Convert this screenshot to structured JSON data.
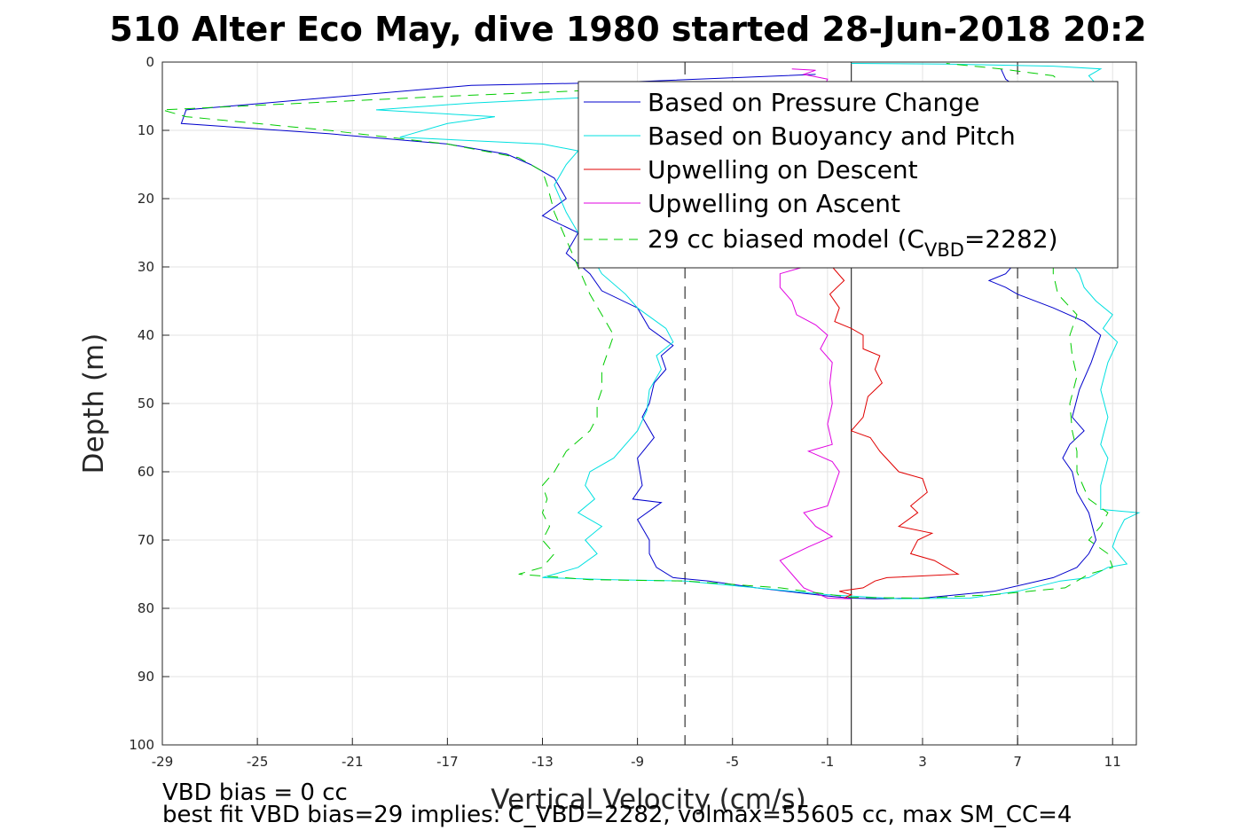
{
  "chart_data": {
    "type": "line",
    "title": "510 Alter Eco May, dive 1980 started 28-Jun-2018 20:2",
    "xlabel": "Vertical Velocity (cm/s)",
    "ylabel": "Depth (m)",
    "xlim": [
      -29,
      12
    ],
    "ylim": [
      0,
      100
    ],
    "y_reversed": true,
    "grid": true,
    "x_ticks": [
      -29,
      -25,
      -21,
      -17,
      -13,
      -9,
      -5,
      -1,
      3,
      7,
      11
    ],
    "y_ticks": [
      0,
      10,
      20,
      30,
      40,
      50,
      60,
      70,
      80,
      90,
      100
    ],
    "legend_position": "top-right",
    "reference_lines": [
      {
        "x": -7,
        "style": "dashed"
      },
      {
        "x": 0,
        "style": "solid"
      },
      {
        "x": 7,
        "style": "dashed"
      }
    ],
    "series": [
      {
        "name": "Based on Pressure Change",
        "color": "#0000cc",
        "style": "solid",
        "points": [
          [
            -1.5,
            1.8
          ],
          [
            -10,
            3
          ],
          [
            -16,
            3.4
          ],
          [
            -28,
            7
          ],
          [
            -28.2,
            9
          ],
          [
            -22,
            10.5
          ],
          [
            -17,
            12
          ],
          [
            -14.5,
            13.5
          ],
          [
            -13.5,
            15
          ],
          [
            -12.5,
            17
          ],
          [
            -12,
            20
          ],
          [
            -13,
            22.5
          ],
          [
            -11.5,
            25
          ],
          [
            -12,
            28
          ],
          [
            -11,
            31
          ],
          [
            -10.5,
            33.5
          ],
          [
            -9,
            36
          ],
          [
            -8.5,
            39
          ],
          [
            -7.5,
            41.5
          ],
          [
            -8,
            43
          ],
          [
            -7.8,
            45
          ],
          [
            -8.3,
            47
          ],
          [
            -8.5,
            50
          ],
          [
            -8.8,
            52
          ],
          [
            -8.3,
            55
          ],
          [
            -9,
            58
          ],
          [
            -8.8,
            62
          ],
          [
            -9.2,
            64
          ],
          [
            -8,
            64.5
          ],
          [
            -9,
            67
          ],
          [
            -8.5,
            70
          ],
          [
            -8.5,
            72
          ],
          [
            -8.2,
            74
          ],
          [
            -7.5,
            75.5
          ],
          [
            -6,
            76
          ],
          [
            -4,
            77
          ],
          [
            -1,
            78.2
          ],
          [
            0,
            78.5
          ],
          [
            1,
            78.6
          ],
          [
            3,
            78.5
          ],
          [
            6,
            77.5
          ],
          [
            8.5,
            75.5
          ],
          [
            9.5,
            74
          ],
          [
            10,
            72
          ],
          [
            10.3,
            70
          ],
          [
            10,
            66
          ],
          [
            9.5,
            63
          ],
          [
            9.3,
            60
          ],
          [
            8.9,
            58
          ],
          [
            9.2,
            56
          ],
          [
            9.8,
            54
          ],
          [
            9.3,
            52
          ],
          [
            9.6,
            48
          ],
          [
            10.1,
            44
          ],
          [
            10.5,
            40
          ],
          [
            9.8,
            38
          ],
          [
            8.5,
            36
          ],
          [
            7,
            34
          ],
          [
            6.5,
            33
          ],
          [
            5.8,
            32
          ],
          [
            6.5,
            31
          ],
          [
            7,
            29
          ],
          [
            7.5,
            26
          ],
          [
            8,
            23
          ],
          [
            8.5,
            20
          ],
          [
            8.8,
            17
          ],
          [
            9,
            14
          ],
          [
            8.5,
            11
          ],
          [
            8,
            8
          ],
          [
            7.5,
            5
          ],
          [
            6.5,
            2.5
          ],
          [
            6.3,
            1
          ]
        ]
      },
      {
        "name": "Based on Buoyancy and Pitch",
        "color": "#00e0e0",
        "style": "solid",
        "points": [
          [
            -3,
            4
          ],
          [
            -10,
            5
          ],
          [
            -16,
            6
          ],
          [
            -20,
            7
          ],
          [
            -15,
            8
          ],
          [
            -17,
            9
          ],
          [
            -19,
            11
          ],
          [
            -16,
            11.5
          ],
          [
            -13,
            12
          ],
          [
            -11.5,
            13
          ],
          [
            -12,
            15
          ],
          [
            -12.5,
            18
          ],
          [
            -12,
            22
          ],
          [
            -11.5,
            25
          ],
          [
            -11,
            28
          ],
          [
            -10.5,
            31
          ],
          [
            -9.5,
            34
          ],
          [
            -9,
            36
          ],
          [
            -7.8,
            39
          ],
          [
            -7.5,
            41
          ],
          [
            -8.2,
            43
          ],
          [
            -8,
            45
          ],
          [
            -8.5,
            48
          ],
          [
            -8.6,
            51
          ],
          [
            -9,
            54
          ],
          [
            -9.5,
            56
          ],
          [
            -10,
            58
          ],
          [
            -11,
            60
          ],
          [
            -11.2,
            62
          ],
          [
            -10.8,
            64
          ],
          [
            -11.5,
            66
          ],
          [
            -10.5,
            68
          ],
          [
            -11.2,
            70
          ],
          [
            -10.7,
            72
          ],
          [
            -11.5,
            74
          ],
          [
            -12.5,
            75
          ],
          [
            -13,
            75.5
          ],
          [
            -10,
            75.8
          ],
          [
            -7,
            76
          ],
          [
            -4,
            77
          ],
          [
            -1,
            78
          ],
          [
            2,
            78.6
          ],
          [
            5,
            78.5
          ],
          [
            7,
            77.5
          ],
          [
            8.8,
            76
          ],
          [
            10,
            75.5
          ],
          [
            10.8,
            74
          ],
          [
            11.6,
            73.5
          ],
          [
            11,
            71
          ],
          [
            11.2,
            69
          ],
          [
            11.5,
            67
          ],
          [
            12.1,
            66
          ],
          [
            10.5,
            65.5
          ],
          [
            10.5,
            62
          ],
          [
            10.8,
            58
          ],
          [
            10.5,
            56
          ],
          [
            10.8,
            52
          ],
          [
            10.5,
            48
          ],
          [
            10.8,
            44
          ],
          [
            11.2,
            41
          ],
          [
            10.6,
            39
          ],
          [
            11,
            37
          ],
          [
            10.3,
            35
          ],
          [
            9.8,
            33
          ],
          [
            9.6,
            31
          ],
          [
            9,
            28
          ],
          [
            9.5,
            24
          ],
          [
            9.2,
            20
          ],
          [
            9.4,
            16
          ],
          [
            9.5,
            12
          ],
          [
            9.8,
            8
          ],
          [
            10.5,
            4
          ],
          [
            10,
            2
          ],
          [
            10.5,
            1
          ],
          [
            8.5,
            0.6
          ],
          [
            4,
            0.3
          ],
          [
            0,
            0.2
          ]
        ]
      },
      {
        "name": "Upwelling on Descent",
        "color": "#e00000",
        "style": "solid",
        "points": [
          [
            -0.8,
            30
          ],
          [
            -0.3,
            32
          ],
          [
            -0.9,
            34
          ],
          [
            -0.5,
            36
          ],
          [
            -0.7,
            38
          ],
          [
            0,
            39
          ],
          [
            0.5,
            40
          ],
          [
            0.5,
            42
          ],
          [
            1.2,
            43
          ],
          [
            1,
            45
          ],
          [
            1.3,
            47
          ],
          [
            0.7,
            49
          ],
          [
            0.5,
            52
          ],
          [
            0,
            54
          ],
          [
            0.8,
            55
          ],
          [
            1.2,
            57
          ],
          [
            2,
            60
          ],
          [
            3,
            61
          ],
          [
            3.2,
            63
          ],
          [
            2.5,
            65
          ],
          [
            2.8,
            66
          ],
          [
            2,
            68
          ],
          [
            3.4,
            69
          ],
          [
            2.8,
            70
          ],
          [
            2.5,
            72
          ],
          [
            3.5,
            73
          ],
          [
            4.5,
            75
          ],
          [
            1.5,
            75.5
          ],
          [
            1,
            76
          ],
          [
            0.5,
            77
          ],
          [
            -0.5,
            77.5
          ],
          [
            0,
            78
          ],
          [
            -0.3,
            78.5
          ]
        ]
      },
      {
        "name": "Upwelling on Ascent",
        "color": "#e000e0",
        "style": "solid",
        "points": [
          [
            -2.5,
            1
          ],
          [
            -1.5,
            1.2
          ],
          [
            -2,
            1.8
          ],
          [
            -1,
            2.5
          ],
          [
            -1.2,
            4
          ],
          [
            -1.3,
            28
          ],
          [
            -2,
            30
          ],
          [
            -3,
            31
          ],
          [
            -3,
            33
          ],
          [
            -2.5,
            35
          ],
          [
            -2.3,
            37
          ],
          [
            -1.5,
            38.5
          ],
          [
            -1,
            40
          ],
          [
            -1.3,
            42
          ],
          [
            -0.8,
            44
          ],
          [
            -0.9,
            47
          ],
          [
            -0.8,
            50
          ],
          [
            -1,
            53
          ],
          [
            -0.8,
            56
          ],
          [
            -1.8,
            57
          ],
          [
            -0.8,
            58.5
          ],
          [
            -0.5,
            60
          ],
          [
            -0.8,
            63
          ],
          [
            -1,
            65
          ],
          [
            -2,
            66
          ],
          [
            -1.5,
            68
          ],
          [
            -0.8,
            69.5
          ],
          [
            -1.8,
            71
          ],
          [
            -3,
            73
          ],
          [
            -2.5,
            75
          ],
          [
            -2,
            77
          ],
          [
            -1,
            78.5
          ],
          [
            0,
            78.6
          ]
        ]
      },
      {
        "name": "29 cc biased model (C_VBD=2282)",
        "color": "#00cc00",
        "style": "dashed",
        "points": [
          [
            -3,
            3
          ],
          [
            -10,
            4
          ],
          [
            -17,
            5
          ],
          [
            -23,
            6
          ],
          [
            -29,
            7
          ],
          [
            -28,
            8
          ],
          [
            -22,
            10
          ],
          [
            -17,
            12
          ],
          [
            -14,
            14
          ],
          [
            -13,
            16
          ],
          [
            -12.8,
            18
          ],
          [
            -12.5,
            22
          ],
          [
            -12,
            26
          ],
          [
            -11.5,
            30
          ],
          [
            -11,
            34
          ],
          [
            -10.5,
            37
          ],
          [
            -10,
            40
          ],
          [
            -10.3,
            43
          ],
          [
            -10.5,
            45
          ],
          [
            -10.5,
            48
          ],
          [
            -10.7,
            50
          ],
          [
            -10.7,
            52
          ],
          [
            -11,
            54
          ],
          [
            -12,
            57
          ],
          [
            -12.5,
            60
          ],
          [
            -13,
            62
          ],
          [
            -12.8,
            64
          ],
          [
            -13,
            66
          ],
          [
            -12.7,
            68
          ],
          [
            -13,
            70
          ],
          [
            -12.5,
            72
          ],
          [
            -13,
            74
          ],
          [
            -14,
            75
          ],
          [
            -11,
            75.8
          ],
          [
            -7,
            76
          ],
          [
            -3,
            77
          ],
          [
            0,
            78.4
          ],
          [
            3,
            78.5
          ],
          [
            6,
            78
          ],
          [
            9,
            77
          ],
          [
            10,
            75
          ],
          [
            11,
            74
          ],
          [
            10.8,
            72
          ],
          [
            10,
            70
          ],
          [
            10.5,
            68
          ],
          [
            10.8,
            66
          ],
          [
            10,
            64
          ],
          [
            9.5,
            60
          ],
          [
            9.5,
            57
          ],
          [
            9.3,
            54
          ],
          [
            9.2,
            50
          ],
          [
            9.5,
            46
          ],
          [
            9.3,
            43
          ],
          [
            9.2,
            40
          ],
          [
            9.5,
            37
          ],
          [
            8.7,
            34
          ],
          [
            8.5,
            31
          ],
          [
            8.5,
            28
          ],
          [
            8.5,
            24
          ],
          [
            9,
            20
          ],
          [
            9.2,
            16
          ],
          [
            9.5,
            12
          ],
          [
            9.8,
            8
          ],
          [
            9.5,
            5
          ],
          [
            8.5,
            2
          ],
          [
            6.3,
            1
          ],
          [
            4,
            0.2
          ]
        ]
      }
    ],
    "legend": {
      "entries": [
        "Based on Pressure Change",
        "Based on Buoyancy and Pitch",
        "Upwelling on Descent",
        "Upwelling on Ascent"
      ],
      "model_prefix": "29 cc biased model (C",
      "model_sub": "VBD",
      "model_suffix": "=2282)"
    },
    "annotations": [
      "VBD bias = 0 cc",
      "best fit VBD bias=29 implies: C_VBD=2282, volmax=55605 cc, max SM_CC=4"
    ]
  }
}
